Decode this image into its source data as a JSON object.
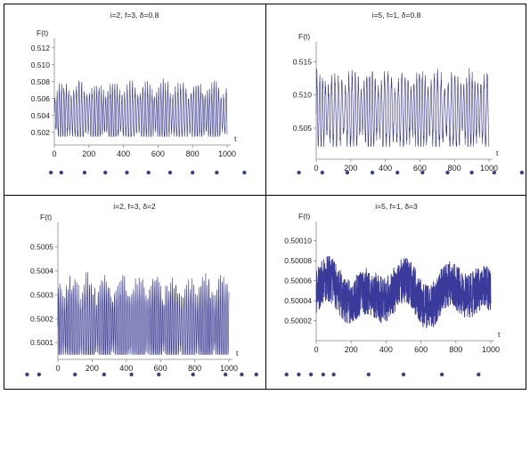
{
  "chart_data": [
    {
      "type": "line",
      "title": "i=2, f=3, δ=0.8",
      "ylabel": "F(t)",
      "xlabel": "t",
      "xlim": [
        0,
        1000
      ],
      "ylim": [
        0.5005,
        0.5125
      ],
      "xticks": [
        0,
        200,
        400,
        600,
        800,
        1000
      ],
      "yticks": [
        0.502,
        0.504,
        0.506,
        0.508,
        0.51,
        0.512
      ],
      "ytick_labels": [
        "0.502",
        "0.504",
        "0.506",
        "0.508",
        "0.510",
        "0.512"
      ],
      "signal": {
        "mean": 0.5042,
        "min": 0.5015,
        "max": 0.5098,
        "period": 14
      },
      "series_color": "#34348f",
      "dots_x": [
        -20,
        40,
        175,
        295,
        420,
        545,
        670,
        800,
        940,
        1100
      ]
    },
    {
      "type": "line",
      "title": "i=5, f=1, δ=0.8",
      "ylabel": "F(t)",
      "xlabel": "t",
      "xlim": [
        0,
        1000
      ],
      "ylim": [
        0.5003,
        0.5172
      ],
      "xticks": [
        0,
        200,
        400,
        600,
        800,
        1000
      ],
      "yticks": [
        0.505,
        0.51,
        0.515
      ],
      "ytick_labels": [
        "0.505",
        "0.510",
        "0.515"
      ],
      "signal": {
        "mean": 0.5075,
        "min": 0.5022,
        "max": 0.5158,
        "period": 18
      },
      "series_color": "#34348f",
      "dots_x": [
        -100,
        35,
        180,
        325,
        470,
        615,
        760,
        900,
        1030,
        1190
      ]
    },
    {
      "type": "line",
      "title": "i=2, f=3, δ=2",
      "ylabel": "F(t)",
      "xlabel": "t",
      "xlim": [
        0,
        1000
      ],
      "ylim": [
        0.50003,
        0.50058
      ],
      "xticks": [
        0,
        200,
        400,
        600,
        800,
        1000
      ],
      "yticks": [
        0.5001,
        0.5002,
        0.5003,
        0.5004,
        0.5005
      ],
      "ytick_labels": [
        "0.5001",
        "0.5002",
        "0.5003",
        "0.5004",
        "0.5005"
      ],
      "signal": {
        "mean": 0.50017,
        "min": 0.50005,
        "max": 0.50051,
        "period": 10
      },
      "series_color": "#34348f",
      "dots_x": [
        -180,
        -110,
        100,
        270,
        430,
        590,
        790,
        980,
        1075,
        1160
      ]
    },
    {
      "type": "line",
      "title": "i=5, f=1, δ=3",
      "ylabel": "F(t)",
      "xlabel": "t",
      "xlim": [
        0,
        1000
      ],
      "ylim": [
        0.5,
        0.000114
      ],
      "xticks": [
        0,
        200,
        400,
        600,
        800,
        1000
      ],
      "yticks": [
        0.50002,
        0.50004,
        0.50006,
        0.50008,
        0.5001
      ],
      "ytick_labels": [
        "0.50002",
        "0.50004",
        "0.50006",
        "0.50008",
        "0.50010"
      ],
      "signal": {
        "mean": 0.500045,
        "min": 0.500005,
        "max": 0.50009,
        "period": 4
      },
      "series_color": "#3a3a9a",
      "dots_x": [
        -170,
        -100,
        -30,
        40,
        100,
        300,
        500,
        720,
        930,
        1220
      ]
    }
  ]
}
